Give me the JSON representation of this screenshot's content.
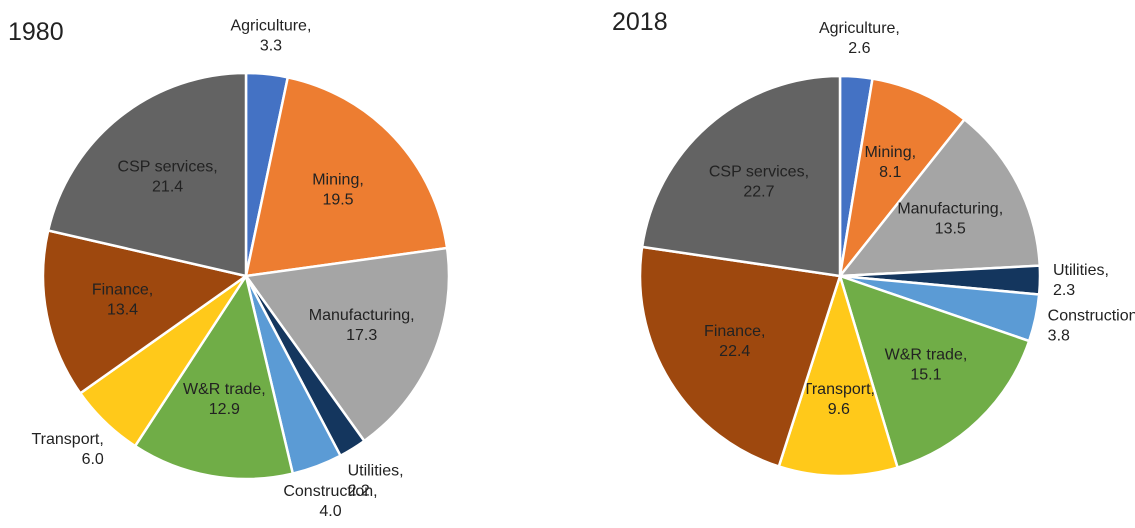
{
  "chart_data": [
    {
      "type": "pie",
      "title": "1980",
      "categories": [
        "Agriculture,",
        "Mining,",
        "Manufacturing,",
        "Utilities,",
        "Construction,",
        "W&R trade,",
        "Transport,",
        "Finance,",
        "CSP services,"
      ],
      "values": [
        3.3,
        19.5,
        17.3,
        2.2,
        4.0,
        12.9,
        6.0,
        13.4,
        21.4
      ],
      "value_labels": [
        "3.3",
        "19.5",
        "17.3",
        "2.2",
        "4.0",
        "12.9",
        "6.0",
        "13.4",
        "21.4"
      ],
      "colors": [
        "#4472c4",
        "#ed7d31",
        "#a5a5a5",
        "#14365e",
        "#5b9bd5",
        "#70ad47",
        "#ffc91a",
        "#9e480e",
        "#636363"
      ]
    },
    {
      "type": "pie",
      "title": "2018",
      "categories": [
        "Agriculture,",
        "Mining,",
        "Manufacturing,",
        "Utilities,",
        "Construction,",
        "W&R trade,",
        "Transport,",
        "Finance,",
        "CSP services,"
      ],
      "values": [
        2.6,
        8.1,
        13.5,
        2.3,
        3.8,
        15.1,
        9.6,
        22.4,
        22.7
      ],
      "value_labels": [
        "2.6",
        "8.1",
        "13.5",
        "2.3",
        "3.8",
        "15.1",
        "9.6",
        "22.4",
        "22.7"
      ],
      "colors": [
        "#4472c4",
        "#ed7d31",
        "#a5a5a5",
        "#14365e",
        "#5b9bd5",
        "#70ad47",
        "#ffc91a",
        "#9e480e",
        "#636363"
      ]
    }
  ]
}
